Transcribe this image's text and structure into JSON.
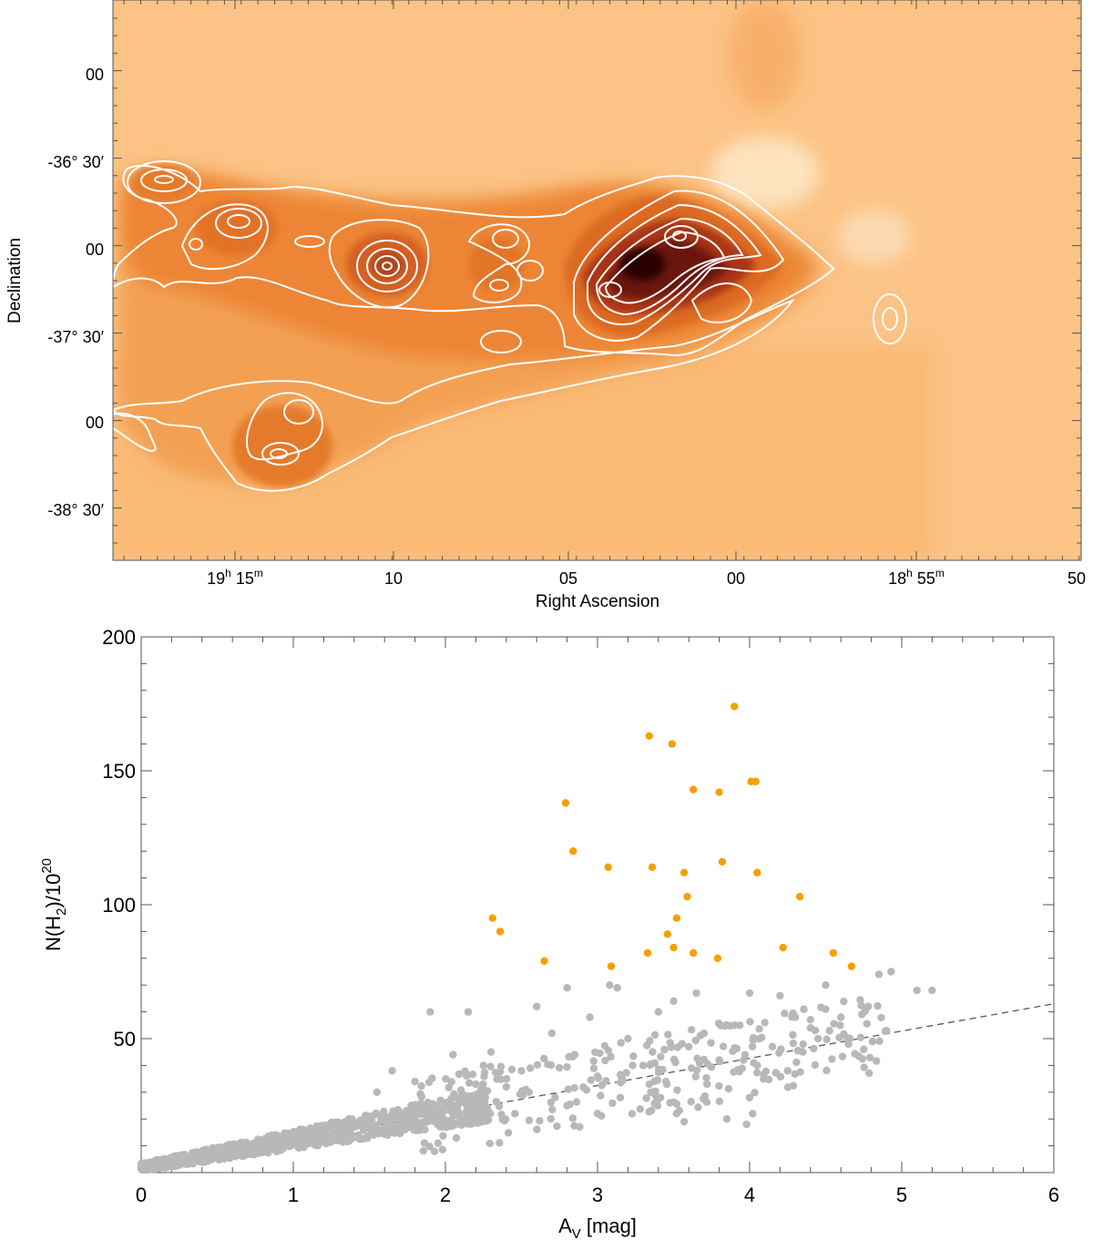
{
  "chart_data": [
    {
      "type": "heatmap",
      "xlabel": "Right Ascension",
      "ylabel": "Declination",
      "x_ticks": [
        {
          "label": "19",
          "sup1": "h",
          "mid": " 15",
          "sup2": "m"
        },
        {
          "label": "10"
        },
        {
          "label": "05"
        },
        {
          "label": "00"
        },
        {
          "label": "18",
          "sup1": "h",
          "mid": " 55",
          "sup2": "m"
        },
        {
          "label": "50"
        }
      ],
      "y_ticks": [
        "00",
        "-36° 30′",
        "00",
        "-37° 30′",
        "00",
        "-38° 30′"
      ],
      "colormap": [
        "#fbc98e",
        "#f7a460",
        "#ea7a2a",
        "#c0461a",
        "#7a1a10",
        "#2a0605"
      ],
      "contour_color": "#ffffff",
      "grid": false
    },
    {
      "type": "scatter",
      "xlabel": "A",
      "xlabel_sub": "V",
      "xlabel_unit": " [mag]",
      "ylabel": "N(H",
      "ylabel_sub": "2",
      "ylabel_mid": ")/10",
      "ylabel_sup": "20",
      "xlim": [
        0,
        6
      ],
      "ylim": [
        0,
        200
      ],
      "x_ticks": [
        "0",
        "1",
        "2",
        "3",
        "4",
        "5",
        "6"
      ],
      "y_ticks": [
        "50",
        "100",
        "150",
        "200"
      ],
      "grid": false,
      "fit_line": {
        "x": [
          0,
          6
        ],
        "y": [
          2,
          63
        ],
        "style": "dashed",
        "color": "#555555"
      },
      "series": [
        {
          "color": "#b8b8b8",
          "points": [
            [
              1.9,
              60
            ],
            [
              2.15,
              60
            ],
            [
              2.6,
              62
            ],
            [
              2.8,
              69
            ],
            [
              3.08,
              70
            ],
            [
              3.13,
              69
            ],
            [
              3.5,
              64
            ],
            [
              3.65,
              67
            ],
            [
              4.0,
              67
            ],
            [
              4.2,
              66
            ],
            [
              4.5,
              70
            ],
            [
              4.85,
              74
            ],
            [
              4.93,
              75
            ],
            [
              5.1,
              68
            ],
            [
              5.2,
              68
            ],
            [
              4.78,
              62
            ],
            [
              4.6,
              58
            ],
            [
              4.5,
              61
            ],
            [
              4.3,
              58
            ],
            [
              3.4,
              60
            ],
            [
              3.7,
              52
            ],
            [
              3.9,
              55
            ],
            [
              4.1,
              56
            ],
            [
              4.4,
              54
            ],
            [
              2.3,
              45
            ],
            [
              2.7,
              52
            ],
            [
              2.95,
              58
            ],
            [
              3.2,
              50
            ],
            [
              3.6,
              47
            ],
            [
              3.8,
              42
            ],
            [
              4.05,
              40
            ],
            [
              4.25,
              38
            ],
            [
              4.65,
              48
            ],
            [
              4.9,
              53
            ],
            [
              2.05,
              44
            ],
            [
              2.25,
              40
            ],
            [
              2.5,
              38
            ],
            [
              2.85,
              44
            ],
            [
              3.0,
              36
            ],
            [
              3.3,
              40
            ],
            [
              3.45,
              34
            ],
            [
              4.0,
              28
            ],
            [
              3.85,
              20
            ],
            [
              3.98,
              18
            ],
            [
              4.02,
              22
            ],
            [
              3.52,
              22
            ],
            [
              3.57,
              19
            ],
            [
              3.0,
              22
            ],
            [
              2.8,
              25
            ],
            [
              2.55,
              30
            ],
            [
              3.15,
              28
            ],
            [
              3.35,
              30
            ],
            [
              3.72,
              33
            ],
            [
              4.35,
              45
            ],
            [
              4.75,
              46
            ],
            [
              4.45,
              50
            ],
            [
              4.15,
              47
            ],
            [
              1.65,
              38
            ],
            [
              1.8,
              34
            ],
            [
              1.55,
              30
            ],
            [
              2.4,
              32
            ],
            [
              2.2,
              33
            ]
          ]
        },
        {
          "color": "#f5a000",
          "points": [
            [
              3.9,
              174
            ],
            [
              3.34,
              163
            ],
            [
              3.49,
              160
            ],
            [
              2.79,
              138
            ],
            [
              3.63,
              143
            ],
            [
              3.8,
              142
            ],
            [
              4.01,
              146
            ],
            [
              4.04,
              146
            ],
            [
              2.84,
              120
            ],
            [
              3.07,
              114
            ],
            [
              3.36,
              114
            ],
            [
              3.82,
              116
            ],
            [
              3.57,
              112
            ],
            [
              4.05,
              112
            ],
            [
              3.59,
              103
            ],
            [
              4.33,
              103
            ],
            [
              2.31,
              95
            ],
            [
              3.52,
              95
            ],
            [
              2.36,
              90
            ],
            [
              3.46,
              89
            ],
            [
              3.5,
              84
            ],
            [
              4.22,
              84
            ],
            [
              2.65,
              79
            ],
            [
              3.09,
              77
            ],
            [
              3.33,
              82
            ],
            [
              3.63,
              82
            ],
            [
              3.79,
              80
            ],
            [
              4.55,
              82
            ],
            [
              4.67,
              77
            ]
          ]
        }
      ]
    }
  ]
}
